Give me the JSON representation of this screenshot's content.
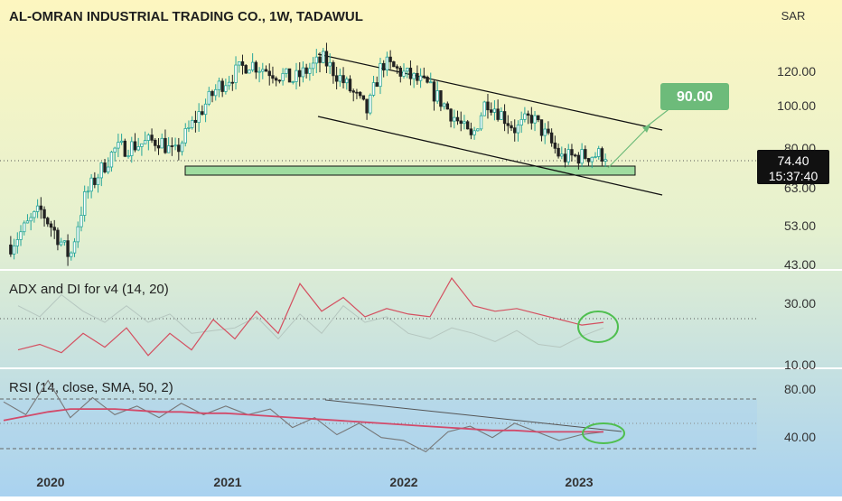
{
  "header": {
    "title": "AL-OMRAN INDUSTRIAL TRADING CO., 1W, TADAWUL",
    "currency": "SAR"
  },
  "price_pane": {
    "last_price": "74.40",
    "countdown": "15:37:40",
    "target_label": "90.00",
    "y_ticks": [
      "120.00",
      "100.00",
      "80.00",
      "63.00",
      "53.00",
      "43.00"
    ],
    "scale": "log",
    "ylim": [
      42,
      140
    ],
    "colors": {
      "up": "#26a69a",
      "down": "#222222",
      "target": "#6dbb7a",
      "support_zone": "#9fdc9f"
    }
  },
  "adx_pane": {
    "title": "ADX and DI for v4 (14, 20)",
    "y_ticks": [
      "30.00",
      "10.00"
    ],
    "ylim": [
      8,
      42
    ],
    "threshold": 20,
    "colors": {
      "adx": "#d45060",
      "di": "#b5c6bf"
    }
  },
  "rsi_pane": {
    "title": "RSI (14, close, SMA, 50, 2)",
    "y_ticks": [
      "80.00",
      "40.00"
    ],
    "ylim": [
      24,
      86
    ],
    "bands": [
      70,
      50,
      30
    ],
    "colors": {
      "rsi": "#777777",
      "sma": "#d24a6a"
    }
  },
  "x_axis": {
    "labels": [
      "2020",
      "2021",
      "2022",
      "2023"
    ]
  },
  "chart_data": [
    {
      "type": "candlestick",
      "title": "AL-OMRAN INDUSTRIAL TRADING CO., 1W, TADAWUL",
      "ylabel": "SAR",
      "x": [
        "2020",
        "2021",
        "2022",
        "2023"
      ],
      "last_value": 74.4,
      "target_value": 90.0,
      "support_zone": [
        70.5,
        73.5
      ],
      "key_points": [
        {
          "t": "2019-11",
          "v": 47
        },
        {
          "t": "2020-01",
          "v": 56
        },
        {
          "t": "2020-03",
          "v": 44
        },
        {
          "t": "2020-04",
          "v": 60
        },
        {
          "t": "2020-06",
          "v": 76
        },
        {
          "t": "2020-09",
          "v": 80
        },
        {
          "t": "2020-10",
          "v": 74
        },
        {
          "t": "2021-01",
          "v": 105
        },
        {
          "t": "2021-03",
          "v": 118
        },
        {
          "t": "2021-06",
          "v": 108
        },
        {
          "t": "2021-08",
          "v": 120
        },
        {
          "t": "2021-11",
          "v": 92
        },
        {
          "t": "2021-12",
          "v": 118
        },
        {
          "t": "2022-03",
          "v": 105
        },
        {
          "t": "2022-06",
          "v": 80
        },
        {
          "t": "2022-07",
          "v": 98
        },
        {
          "t": "2022-09",
          "v": 84
        },
        {
          "t": "2022-10",
          "v": 90
        },
        {
          "t": "2022-12",
          "v": 73
        },
        {
          "t": "2023-03",
          "v": 74.4
        }
      ]
    },
    {
      "type": "line",
      "title": "ADX and DI for v4 (14, 20)",
      "series": [
        {
          "values": [
            14,
            16,
            13,
            20,
            15,
            22,
            12,
            20,
            14,
            25,
            18,
            28,
            20,
            38,
            28,
            33,
            26,
            29,
            27,
            26,
            40,
            30,
            28,
            29,
            27,
            25,
            23,
            24
          ]
        },
        {
          "values": [
            30,
            26,
            34,
            28,
            24,
            30,
            24,
            27,
            20,
            21,
            22,
            26,
            18,
            27,
            20,
            30,
            24,
            26,
            20,
            18,
            22,
            20,
            17,
            21,
            16,
            15,
            19,
            22
          ]
        }
      ]
    },
    {
      "type": "line",
      "title": "RSI (14, close, SMA, 50, 2)",
      "series": [
        {
          "values": [
            65,
            56,
            80,
            54,
            68,
            56,
            62,
            54,
            64,
            56,
            62,
            56,
            60,
            47,
            54,
            42,
            50,
            40,
            38,
            30,
            44,
            48,
            40,
            50,
            44,
            38,
            42,
            44
          ]
        },
        {
          "values": [
            52,
            55,
            58,
            60,
            60,
            60,
            59,
            58,
            58,
            57,
            57,
            56,
            55,
            54,
            53,
            52,
            51,
            50,
            49,
            48,
            47,
            46,
            45,
            45,
            44,
            44,
            44,
            44
          ]
        }
      ]
    }
  ]
}
